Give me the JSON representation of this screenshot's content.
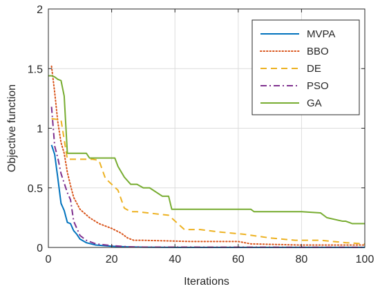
{
  "chart_data": {
    "type": "line",
    "xlabel": "Iterations",
    "ylabel": "Objective function",
    "xlim": [
      0,
      100
    ],
    "ylim": [
      0,
      2
    ],
    "xticks": [
      "0",
      "20",
      "40",
      "60",
      "80",
      "100"
    ],
    "yticks": [
      "0",
      "0.5",
      "1",
      "1.5",
      "2"
    ],
    "grid": true,
    "legend_position": "top-right",
    "series": [
      {
        "name": "MVPA",
        "color": "#0072BD",
        "dash": "solid",
        "x": [
          1,
          2,
          3,
          4,
          5,
          6,
          7,
          8,
          9,
          10,
          12,
          15,
          20,
          25,
          30,
          40,
          100
        ],
        "y": [
          0.86,
          0.78,
          0.58,
          0.37,
          0.31,
          0.21,
          0.2,
          0.14,
          0.11,
          0.07,
          0.04,
          0.02,
          0.01,
          0.005,
          0.002,
          0.001,
          0.001
        ]
      },
      {
        "name": "BBO",
        "color": "#D95319",
        "dash": "dotted",
        "x": [
          1,
          2,
          3,
          4,
          5,
          6,
          7,
          8,
          10,
          13,
          16,
          20,
          23,
          25,
          27,
          30,
          45,
          60,
          62,
          64,
          80,
          100
        ],
        "y": [
          1.52,
          1.3,
          1.05,
          0.88,
          0.79,
          0.63,
          0.52,
          0.42,
          0.32,
          0.25,
          0.2,
          0.16,
          0.12,
          0.08,
          0.06,
          0.06,
          0.05,
          0.05,
          0.04,
          0.03,
          0.02,
          0.02
        ]
      },
      {
        "name": "DE",
        "color": "#EDB120",
        "dash": "dashed",
        "x": [
          1,
          4,
          6,
          14,
          16,
          18,
          20,
          22,
          24,
          26,
          28,
          38,
          43,
          48,
          54,
          62,
          70,
          78,
          86,
          94,
          100
        ],
        "y": [
          1.08,
          1.07,
          0.74,
          0.74,
          0.73,
          0.58,
          0.53,
          0.48,
          0.33,
          0.3,
          0.3,
          0.27,
          0.15,
          0.15,
          0.13,
          0.11,
          0.08,
          0.06,
          0.06,
          0.04,
          0.03
        ]
      },
      {
        "name": "PSO",
        "color": "#7E2F8E",
        "dash": "dashdot",
        "x": [
          1,
          2,
          3,
          4,
          5,
          6,
          7,
          8,
          10,
          12,
          15,
          20,
          25,
          30,
          100
        ],
        "y": [
          1.18,
          0.85,
          0.75,
          0.62,
          0.54,
          0.46,
          0.4,
          0.22,
          0.1,
          0.06,
          0.03,
          0.015,
          0.006,
          0.003,
          0.001
        ]
      },
      {
        "name": "GA",
        "color": "#77AC30",
        "dash": "solid",
        "x": [
          0,
          1,
          2,
          3,
          4,
          5,
          6,
          12,
          13,
          21,
          22,
          24,
          26,
          28,
          30,
          32,
          36,
          38,
          39,
          50,
          64,
          65,
          80,
          86,
          88,
          93,
          94,
          96,
          100
        ],
        "y": [
          1.44,
          1.44,
          1.43,
          1.41,
          1.4,
          1.27,
          0.79,
          0.79,
          0.75,
          0.75,
          0.68,
          0.59,
          0.53,
          0.53,
          0.5,
          0.5,
          0.43,
          0.43,
          0.32,
          0.32,
          0.32,
          0.3,
          0.3,
          0.29,
          0.25,
          0.22,
          0.22,
          0.2,
          0.2
        ]
      }
    ]
  }
}
